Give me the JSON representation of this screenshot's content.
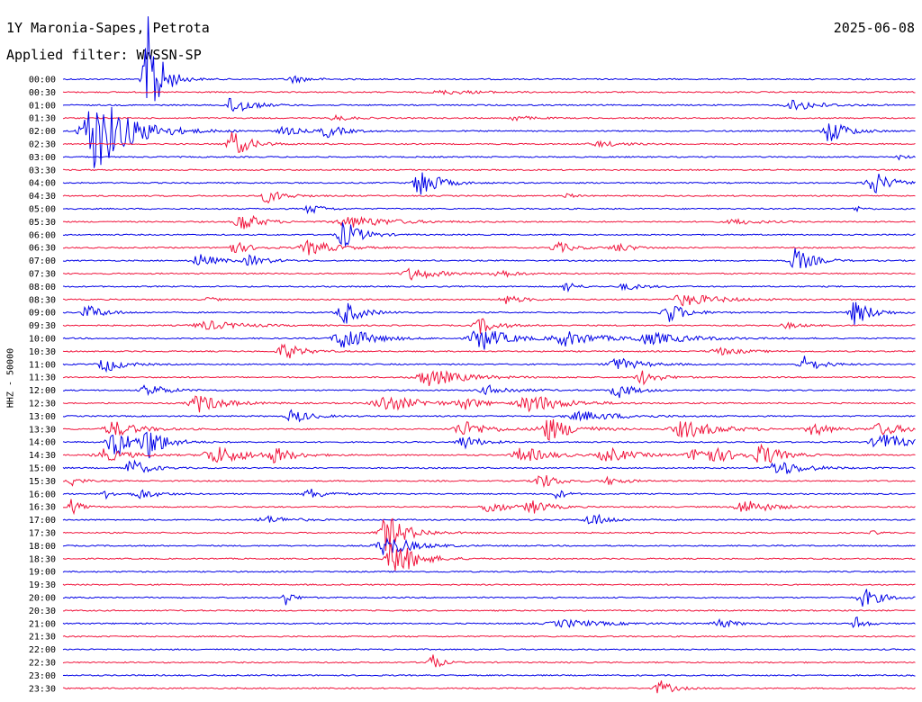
{
  "header": {
    "station": "1Y Maronia-Sapes, Petrota",
    "date": "2025-06-08",
    "filter": "Applied filter: WWSSN-SP"
  },
  "chart_data": {
    "type": "line",
    "title": "1Y Maronia-Sapes, Petrota",
    "ylabel": "HHZ - 50000",
    "time_labels": [
      "00:00",
      "00:30",
      "01:00",
      "01:30",
      "02:00",
      "02:30",
      "03:00",
      "03:30",
      "04:00",
      "04:30",
      "05:00",
      "05:30",
      "06:00",
      "06:30",
      "07:00",
      "07:30",
      "08:00",
      "08:30",
      "09:00",
      "09:30",
      "10:00",
      "10:30",
      "11:00",
      "11:30",
      "12:00",
      "12:30",
      "13:00",
      "13:30",
      "14:00",
      "14:30",
      "15:00",
      "15:30",
      "16:00",
      "16:30",
      "17:00",
      "17:30",
      "18:00",
      "18:30",
      "19:00",
      "19:30",
      "20:00",
      "20:30",
      "21:00",
      "21:30",
      "22:00",
      "22:30",
      "23:00",
      "23:30"
    ],
    "line_colors": [
      "#0000e6",
      "#f0143c"
    ],
    "bursts": [
      {
        "row": 0,
        "t": 0.1,
        "a": 70,
        "w": 0.015
      },
      {
        "row": 0,
        "t": 0.27,
        "a": 4,
        "w": 0.02
      },
      {
        "row": 1,
        "t": 0.45,
        "a": 2,
        "w": 0.05
      },
      {
        "row": 2,
        "t": 0.2,
        "a": 12,
        "w": 0.02
      },
      {
        "row": 2,
        "t": 0.86,
        "a": 6,
        "w": 0.03
      },
      {
        "row": 3,
        "t": 0.32,
        "a": 3,
        "w": 0.02
      },
      {
        "row": 3,
        "t": 0.53,
        "a": 3,
        "w": 0.02
      },
      {
        "row": 4,
        "t": 0.04,
        "a": 45,
        "w": 0.04
      },
      {
        "row": 4,
        "t": 0.26,
        "a": 5,
        "w": 0.02
      },
      {
        "row": 4,
        "t": 0.31,
        "a": 7,
        "w": 0.02
      },
      {
        "row": 4,
        "t": 0.9,
        "a": 14,
        "w": 0.02
      },
      {
        "row": 5,
        "t": 0.2,
        "a": 15,
        "w": 0.02
      },
      {
        "row": 5,
        "t": 0.63,
        "a": 3,
        "w": 0.03
      },
      {
        "row": 6,
        "t": 0.98,
        "a": 3,
        "w": 0.01
      },
      {
        "row": 8,
        "t": 0.42,
        "a": 18,
        "w": 0.02
      },
      {
        "row": 8,
        "t": 0.95,
        "a": 14,
        "w": 0.02
      },
      {
        "row": 9,
        "t": 0.24,
        "a": 8,
        "w": 0.02
      },
      {
        "row": 9,
        "t": 0.59,
        "a": 3,
        "w": 0.01
      },
      {
        "row": 10,
        "t": 0.29,
        "a": 6,
        "w": 0.015
      },
      {
        "row": 10,
        "t": 0.93,
        "a": 3,
        "w": 0.01
      },
      {
        "row": 11,
        "t": 0.21,
        "a": 12,
        "w": 0.02
      },
      {
        "row": 11,
        "t": 0.34,
        "a": 6,
        "w": 0.05
      },
      {
        "row": 11,
        "t": 0.79,
        "a": 3,
        "w": 0.03
      },
      {
        "row": 12,
        "t": 0.33,
        "a": 16,
        "w": 0.02
      },
      {
        "row": 13,
        "t": 0.2,
        "a": 7,
        "w": 0.02
      },
      {
        "row": 13,
        "t": 0.29,
        "a": 8,
        "w": 0.03
      },
      {
        "row": 13,
        "t": 0.58,
        "a": 6,
        "w": 0.02
      },
      {
        "row": 13,
        "t": 0.65,
        "a": 5,
        "w": 0.02
      },
      {
        "row": 14,
        "t": 0.16,
        "a": 8,
        "w": 0.02
      },
      {
        "row": 14,
        "t": 0.22,
        "a": 6,
        "w": 0.02
      },
      {
        "row": 14,
        "t": 0.86,
        "a": 14,
        "w": 0.02
      },
      {
        "row": 15,
        "t": 0.41,
        "a": 7,
        "w": 0.03
      },
      {
        "row": 15,
        "t": 0.51,
        "a": 5,
        "w": 0.02
      },
      {
        "row": 16,
        "t": 0.59,
        "a": 8,
        "w": 0.01
      },
      {
        "row": 16,
        "t": 0.66,
        "a": 4,
        "w": 0.02
      },
      {
        "row": 17,
        "t": 0.17,
        "a": 3,
        "w": 0.01
      },
      {
        "row": 17,
        "t": 0.52,
        "a": 5,
        "w": 0.02
      },
      {
        "row": 17,
        "t": 0.73,
        "a": 7,
        "w": 0.04
      },
      {
        "row": 18,
        "t": 0.03,
        "a": 8,
        "w": 0.02
      },
      {
        "row": 18,
        "t": 0.33,
        "a": 14,
        "w": 0.02
      },
      {
        "row": 18,
        "t": 0.71,
        "a": 12,
        "w": 0.02
      },
      {
        "row": 18,
        "t": 0.93,
        "a": 14,
        "w": 0.02
      },
      {
        "row": 19,
        "t": 0.17,
        "a": 5,
        "w": 0.04
      },
      {
        "row": 19,
        "t": 0.49,
        "a": 9,
        "w": 0.02
      },
      {
        "row": 19,
        "t": 0.85,
        "a": 3,
        "w": 0.02
      },
      {
        "row": 20,
        "t": 0.33,
        "a": 14,
        "w": 0.03
      },
      {
        "row": 20,
        "t": 0.49,
        "a": 14,
        "w": 0.03
      },
      {
        "row": 20,
        "t": 0.59,
        "a": 8,
        "w": 0.04
      },
      {
        "row": 20,
        "t": 0.69,
        "a": 6,
        "w": 0.05
      },
      {
        "row": 21,
        "t": 0.26,
        "a": 10,
        "w": 0.02
      },
      {
        "row": 21,
        "t": 0.77,
        "a": 4,
        "w": 0.03
      },
      {
        "row": 22,
        "t": 0.05,
        "a": 9,
        "w": 0.02
      },
      {
        "row": 22,
        "t": 0.65,
        "a": 7,
        "w": 0.03
      },
      {
        "row": 22,
        "t": 0.87,
        "a": 9,
        "w": 0.02
      },
      {
        "row": 23,
        "t": 0.43,
        "a": 10,
        "w": 0.04
      },
      {
        "row": 23,
        "t": 0.68,
        "a": 8,
        "w": 0.02
      },
      {
        "row": 24,
        "t": 0.1,
        "a": 8,
        "w": 0.02
      },
      {
        "row": 24,
        "t": 0.5,
        "a": 5,
        "w": 0.03
      },
      {
        "row": 24,
        "t": 0.65,
        "a": 9,
        "w": 0.02
      },
      {
        "row": 25,
        "t": 0.16,
        "a": 10,
        "w": 0.03
      },
      {
        "row": 25,
        "t": 0.38,
        "a": 9,
        "w": 0.04
      },
      {
        "row": 25,
        "t": 0.47,
        "a": 7,
        "w": 0.02
      },
      {
        "row": 25,
        "t": 0.55,
        "a": 10,
        "w": 0.04
      },
      {
        "row": 26,
        "t": 0.27,
        "a": 8,
        "w": 0.02
      },
      {
        "row": 26,
        "t": 0.61,
        "a": 5,
        "w": 0.05
      },
      {
        "row": 27,
        "t": 0.06,
        "a": 9,
        "w": 0.03
      },
      {
        "row": 27,
        "t": 0.47,
        "a": 9,
        "w": 0.03
      },
      {
        "row": 27,
        "t": 0.57,
        "a": 13,
        "w": 0.03
      },
      {
        "row": 27,
        "t": 0.73,
        "a": 10,
        "w": 0.04
      },
      {
        "row": 27,
        "t": 0.88,
        "a": 8,
        "w": 0.02
      },
      {
        "row": 27,
        "t": 0.96,
        "a": 7,
        "w": 0.03
      },
      {
        "row": 28,
        "t": 0.06,
        "a": 18,
        "w": 0.02
      },
      {
        "row": 28,
        "t": 0.1,
        "a": 18,
        "w": 0.02
      },
      {
        "row": 28,
        "t": 0.47,
        "a": 8,
        "w": 0.02
      },
      {
        "row": 28,
        "t": 0.96,
        "a": 10,
        "w": 0.03
      },
      {
        "row": 29,
        "t": 0.05,
        "a": 7,
        "w": 0.03
      },
      {
        "row": 29,
        "t": 0.18,
        "a": 10,
        "w": 0.04
      },
      {
        "row": 29,
        "t": 0.25,
        "a": 8,
        "w": 0.02
      },
      {
        "row": 29,
        "t": 0.54,
        "a": 9,
        "w": 0.03
      },
      {
        "row": 29,
        "t": 0.64,
        "a": 8,
        "w": 0.03
      },
      {
        "row": 29,
        "t": 0.75,
        "a": 11,
        "w": 0.04
      },
      {
        "row": 29,
        "t": 0.82,
        "a": 12,
        "w": 0.02
      },
      {
        "row": 30,
        "t": 0.08,
        "a": 10,
        "w": 0.02
      },
      {
        "row": 30,
        "t": 0.84,
        "a": 9,
        "w": 0.03
      },
      {
        "row": 31,
        "t": 0.01,
        "a": 7,
        "w": 0.01
      },
      {
        "row": 31,
        "t": 0.56,
        "a": 9,
        "w": 0.02
      },
      {
        "row": 31,
        "t": 0.64,
        "a": 4,
        "w": 0.02
      },
      {
        "row": 32,
        "t": 0.05,
        "a": 5,
        "w": 0.01
      },
      {
        "row": 32,
        "t": 0.09,
        "a": 6,
        "w": 0.02
      },
      {
        "row": 32,
        "t": 0.29,
        "a": 6,
        "w": 0.02
      },
      {
        "row": 32,
        "t": 0.58,
        "a": 6,
        "w": 0.01
      },
      {
        "row": 33,
        "t": 0.01,
        "a": 9,
        "w": 0.01
      },
      {
        "row": 33,
        "t": 0.5,
        "a": 8,
        "w": 0.02
      },
      {
        "row": 33,
        "t": 0.55,
        "a": 8,
        "w": 0.02
      },
      {
        "row": 33,
        "t": 0.8,
        "a": 8,
        "w": 0.03
      },
      {
        "row": 34,
        "t": 0.24,
        "a": 4,
        "w": 0.03
      },
      {
        "row": 34,
        "t": 0.62,
        "a": 8,
        "w": 0.02
      },
      {
        "row": 35,
        "t": 0.38,
        "a": 20,
        "w": 0.025
      },
      {
        "row": 35,
        "t": 0.95,
        "a": 2,
        "w": 0.01
      },
      {
        "row": 36,
        "t": 0.38,
        "a": 12,
        "w": 0.03
      },
      {
        "row": 37,
        "t": 0.39,
        "a": 22,
        "w": 0.025
      },
      {
        "row": 40,
        "t": 0.26,
        "a": 9,
        "w": 0.01
      },
      {
        "row": 40,
        "t": 0.94,
        "a": 11,
        "w": 0.02
      },
      {
        "row": 42,
        "t": 0.59,
        "a": 4,
        "w": 0.05
      },
      {
        "row": 42,
        "t": 0.77,
        "a": 5,
        "w": 0.02
      },
      {
        "row": 42,
        "t": 0.93,
        "a": 9,
        "w": 0.01
      },
      {
        "row": 45,
        "t": 0.43,
        "a": 14,
        "w": 0.01
      },
      {
        "row": 47,
        "t": 0.7,
        "a": 9,
        "w": 0.015
      }
    ]
  }
}
